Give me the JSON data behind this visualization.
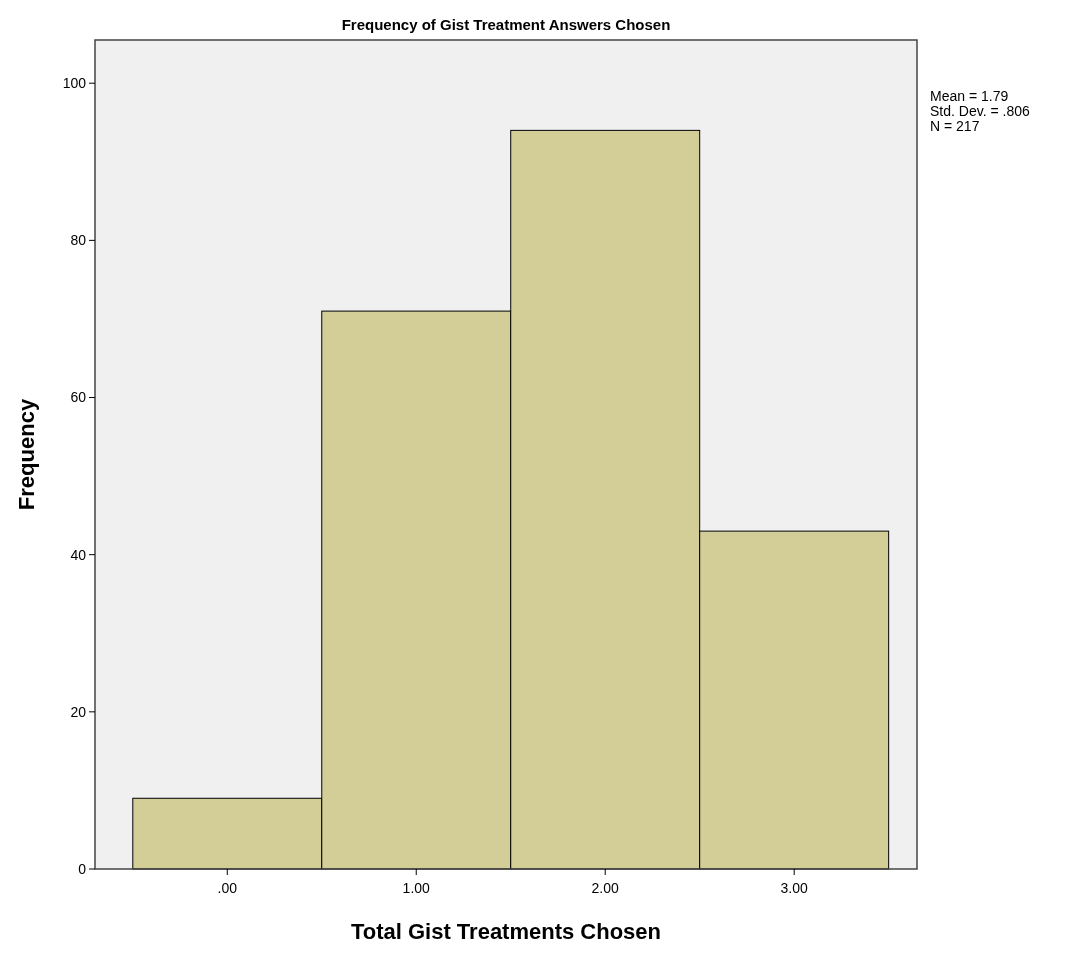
{
  "chart_data": {
    "type": "histogram",
    "title": "Frequency of Gist Treatment Answers Chosen",
    "xlabel": "Total Gist Treatments Chosen",
    "ylabel": "Frequency",
    "bins": [
      -0.5,
      0.5,
      1.5,
      2.5,
      3.5
    ],
    "values": [
      9,
      71,
      94,
      43
    ],
    "color": "#d3ce97",
    "xlim": [
      -0.7,
      3.65
    ],
    "xticks": [
      {
        "value": 0,
        "label": ".00"
      },
      {
        "value": 1,
        "label": "1.00"
      },
      {
        "value": 2,
        "label": "2.00"
      },
      {
        "value": 3,
        "label": "3.00"
      }
    ],
    "ylim": [
      0,
      105.5
    ],
    "yticks": [
      0,
      20,
      40,
      60,
      80,
      100
    ],
    "grid": false,
    "annotations": [
      "Mean = 1.79",
      "Std. Dev. = .806",
      "N = 217"
    ]
  }
}
